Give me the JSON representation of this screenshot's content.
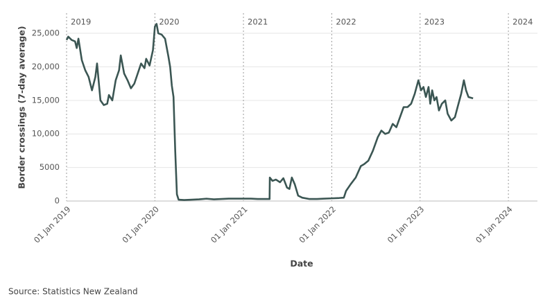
{
  "chart_data": {
    "type": "line",
    "y_label": "Border crossings (7-day average)",
    "x_label": "Date",
    "source": "Source: Statistics New Zealand",
    "x": [
      "2019-01-01",
      "2019-01-08",
      "2019-01-22",
      "2019-02-05",
      "2019-02-12",
      "2019-02-19",
      "2019-03-05",
      "2019-03-19",
      "2019-04-02",
      "2019-04-16",
      "2019-04-30",
      "2019-05-07",
      "2019-05-21",
      "2019-06-04",
      "2019-06-18",
      "2019-06-25",
      "2019-07-09",
      "2019-07-23",
      "2019-08-06",
      "2019-08-13",
      "2019-08-27",
      "2019-09-10",
      "2019-09-24",
      "2019-10-08",
      "2019-10-22",
      "2019-11-05",
      "2019-11-19",
      "2019-11-26",
      "2019-12-10",
      "2019-12-24",
      "2020-01-01",
      "2020-01-08",
      "2020-01-15",
      "2020-01-29",
      "2020-02-12",
      "2020-02-26",
      "2020-03-04",
      "2020-03-11",
      "2020-03-18",
      "2020-03-25",
      "2020-04-01",
      "2020-04-08",
      "2020-05-01",
      "2020-06-01",
      "2020-07-01",
      "2020-08-01",
      "2020-09-01",
      "2020-10-01",
      "2020-11-01",
      "2020-12-01",
      "2021-01-01",
      "2021-02-01",
      "2021-03-01",
      "2021-04-01",
      "2021-04-19",
      "2021-04-20",
      "2021-05-01",
      "2021-05-15",
      "2021-06-01",
      "2021-06-15",
      "2021-06-30",
      "2021-07-10",
      "2021-07-20",
      "2021-08-01",
      "2021-08-15",
      "2021-09-01",
      "2021-10-01",
      "2021-11-01",
      "2021-12-01",
      "2022-01-01",
      "2022-02-01",
      "2022-02-20",
      "2022-03-01",
      "2022-03-20",
      "2022-04-10",
      "2022-05-01",
      "2022-05-15",
      "2022-06-01",
      "2022-06-20",
      "2022-07-10",
      "2022-07-25",
      "2022-08-10",
      "2022-08-25",
      "2022-09-10",
      "2022-09-25",
      "2022-10-10",
      "2022-10-25",
      "2022-11-10",
      "2022-11-25",
      "2022-12-10",
      "2022-12-25",
      "2023-01-05",
      "2023-01-15",
      "2023-01-25",
      "2023-02-05",
      "2023-02-12",
      "2023-02-20",
      "2023-03-01",
      "2023-03-10",
      "2023-03-20",
      "2023-04-01",
      "2023-04-15",
      "2023-04-25",
      "2023-05-10",
      "2023-05-25",
      "2023-06-05",
      "2023-06-20",
      "2023-07-01",
      "2023-07-10",
      "2023-07-20",
      "2023-08-08"
    ],
    "series": [
      {
        "color": "#3b5653",
        "values": [
          24000,
          24500,
          24000,
          23800,
          22800,
          24200,
          21000,
          19500,
          18500,
          16500,
          18500,
          20500,
          15000,
          14300,
          14500,
          15800,
          15000,
          18000,
          19500,
          21700,
          19000,
          18000,
          16800,
          17500,
          19000,
          20500,
          19800,
          21200,
          20200,
          22500,
          26000,
          26400,
          25000,
          24800,
          24200,
          21500,
          20000,
          17200,
          15500,
          7500,
          1000,
          200,
          150,
          200,
          250,
          350,
          250,
          300,
          350,
          350,
          350,
          350,
          300,
          300,
          300,
          3500,
          3000,
          3200,
          2800,
          3400,
          2000,
          1800,
          3500,
          2500,
          800,
          500,
          300,
          300,
          350,
          400,
          450,
          500,
          1500,
          2500,
          3500,
          5200,
          5500,
          6000,
          7500,
          9500,
          10500,
          10000,
          10200,
          11500,
          11000,
          12500,
          14000,
          14000,
          14500,
          16000,
          18000,
          16500,
          17000,
          15500,
          17000,
          14500,
          16500,
          15000,
          15500,
          13500,
          14500,
          15000,
          13000,
          12000,
          12500,
          14000,
          16000,
          18000,
          16500,
          15500,
          15300
        ]
      }
    ],
    "xlim": [
      "2019-01-01",
      "2024-04-30"
    ],
    "xticks": [
      {
        "value": "2019-01-01",
        "label": "01 Jan 2019"
      },
      {
        "value": "2020-01-01",
        "label": "01 Jan 2020"
      },
      {
        "value": "2021-01-01",
        "label": "01 Jan 2021"
      },
      {
        "value": "2022-01-01",
        "label": "01 Jan 2022"
      },
      {
        "value": "2023-01-01",
        "label": "01 Jan 2023"
      },
      {
        "value": "2024-01-01",
        "label": "01 Jan 2024"
      }
    ],
    "annotations": [
      {
        "x": "2019-01-01",
        "text": "2019"
      },
      {
        "x": "2020-01-01",
        "text": "2020"
      },
      {
        "x": "2021-01-01",
        "text": "2021"
      },
      {
        "x": "2022-01-01",
        "text": "2022"
      },
      {
        "x": "2023-01-01",
        "text": "2023"
      },
      {
        "x": "2024-01-01",
        "text": "2024"
      }
    ],
    "ylim": [
      0,
      28000
    ],
    "yticks": [
      0,
      5000,
      {
        "value": 10000,
        "label": "10,000"
      },
      {
        "value": 15000,
        "label": "15,000"
      },
      {
        "value": 20000,
        "label": "20,000"
      },
      {
        "value": 25000,
        "label": "25,000"
      }
    ],
    "grid": true
  }
}
